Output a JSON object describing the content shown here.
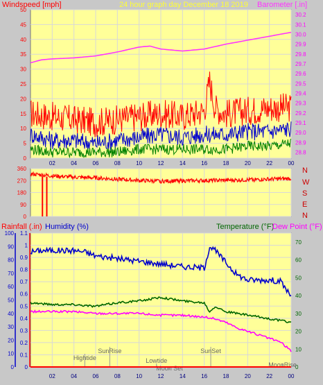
{
  "colors": {
    "background": "#c8c8c8",
    "plot_bg": "#ffff99",
    "grid": "#d8d8d8",
    "wind_gust": "#ff0000",
    "wind_avg": "#0000cc",
    "wind_min": "#008000",
    "barometer": "#ff33ff",
    "direction": "#ff0000",
    "rainfall": "#ff0000",
    "humidity": "#0000cc",
    "temperature": "#006600",
    "dewpoint": "#ff00ff"
  },
  "header": {
    "left": "Windspeed [mph]",
    "center": "24 hour graph day   December 18 2019",
    "right": "Barometer [.in]"
  },
  "lower_header": {
    "rainfall": "Rainfall (.in)",
    "humidity": "Humidity (%)",
    "temperature": "Temperature (°F)",
    "dewpoint": "Dew Point (°F)"
  },
  "compass": [
    "N",
    "W",
    "S",
    "E",
    "N"
  ],
  "x_ticks": [
    "02",
    "04",
    "06",
    "08",
    "10",
    "12",
    "14",
    "16",
    "18",
    "20",
    "22",
    "00"
  ],
  "annotations": {
    "hightide": "Hightide",
    "sunrise": "SunRise",
    "lowtide": "Lowtide",
    "moonset": "Moon Set",
    "sunset": "SunSet",
    "moonrise": "MoonRise"
  },
  "chart_data": [
    {
      "type": "line",
      "name": "wind-barometer",
      "x_ticks": [
        "02",
        "04",
        "06",
        "08",
        "10",
        "12",
        "14",
        "16",
        "18",
        "20",
        "22",
        "00"
      ],
      "y_left": {
        "label": "Windspeed [mph]",
        "ticks": [
          0,
          5,
          10,
          15,
          20,
          25,
          30,
          35,
          40,
          45,
          50
        ],
        "range": [
          0,
          50
        ]
      },
      "y_right": {
        "label": "Barometer [.in]",
        "ticks": [
          28.8,
          28.9,
          29.0,
          29.1,
          29.2,
          29.3,
          29.4,
          29.5,
          29.6,
          29.7,
          29.8,
          29.9,
          30.0,
          30.1,
          30.2
        ],
        "range": [
          28.74,
          30.25
        ]
      },
      "series": [
        {
          "key": "gust",
          "axis": "left",
          "hours": [
            0,
            2,
            4,
            6,
            8,
            10,
            12,
            14,
            16,
            16.5,
            17,
            18,
            20,
            22,
            24
          ],
          "values": [
            15,
            14,
            13,
            12,
            13,
            14,
            15,
            14,
            16,
            26,
            17,
            15,
            16,
            17,
            17
          ]
        },
        {
          "key": "avg",
          "axis": "left",
          "hours": [
            0,
            2,
            4,
            6,
            8,
            10,
            12,
            14,
            16,
            18,
            20,
            22,
            24
          ],
          "values": [
            8,
            6,
            6,
            5,
            6,
            7,
            8,
            7,
            8,
            8,
            9,
            9,
            10
          ]
        },
        {
          "key": "min",
          "axis": "left",
          "hours": [
            0,
            2,
            4,
            6,
            8,
            10,
            12,
            14,
            16,
            18,
            20,
            22,
            24
          ],
          "values": [
            3,
            2,
            2,
            2,
            2,
            3,
            3,
            3,
            3,
            3,
            4,
            4,
            5
          ]
        },
        {
          "key": "barometer",
          "axis": "right",
          "hours": [
            0,
            1,
            2,
            4,
            6,
            8,
            10,
            11,
            12,
            14,
            16,
            18,
            20,
            22,
            24
          ],
          "values": [
            29.71,
            29.74,
            29.75,
            29.76,
            29.78,
            29.82,
            29.87,
            29.88,
            29.85,
            29.83,
            29.85,
            29.9,
            29.94,
            29.98,
            30.02
          ]
        }
      ]
    },
    {
      "type": "line",
      "name": "wind-direction",
      "y_left": {
        "ticks": [
          0,
          90,
          180,
          270,
          360
        ],
        "range": [
          0,
          360
        ]
      },
      "series": [
        {
          "key": "direction",
          "hours": [
            0,
            2,
            4,
            6,
            8,
            10,
            12,
            14,
            16,
            18,
            20,
            22,
            24
          ],
          "values": [
            320,
            305,
            295,
            290,
            280,
            270,
            265,
            268,
            270,
            272,
            275,
            280,
            285
          ]
        }
      ]
    },
    {
      "type": "line",
      "name": "temp-humidity",
      "y_rain": {
        "label": "Rainfall (.in)",
        "ticks": [
          0,
          0.1,
          0.2,
          0.3,
          0.4,
          0.5,
          0.6,
          0.7,
          0.8,
          0.9,
          1,
          1.1
        ],
        "range": [
          0,
          1.1
        ]
      },
      "y_hum": {
        "label": "Humidity (%)",
        "ticks": [
          0,
          10,
          20,
          30,
          40,
          50,
          60,
          70,
          80,
          90,
          100
        ],
        "range": [
          0,
          100
        ]
      },
      "y_temp": {
        "label": "Temperature (°F)",
        "ticks": [
          0,
          10,
          20,
          30,
          40,
          50,
          60,
          70
        ],
        "range": [
          0,
          75
        ]
      },
      "series": [
        {
          "key": "humidity",
          "axis": "hum",
          "hours": [
            0,
            1,
            4,
            5,
            6,
            8,
            10,
            12,
            14,
            16,
            16.5,
            17,
            18,
            19,
            20,
            22,
            23,
            24
          ],
          "values": [
            86,
            87,
            87,
            86,
            83,
            81,
            79,
            77,
            75,
            74,
            90,
            87,
            78,
            69,
            65,
            65,
            64,
            53
          ]
        },
        {
          "key": "temperature",
          "axis": "temp",
          "hours": [
            0,
            2,
            4,
            6,
            8,
            10,
            12,
            14,
            16,
            16.5,
            17,
            18,
            20,
            22,
            24
          ],
          "values": [
            36,
            35,
            35,
            34,
            36,
            37,
            39,
            37,
            36,
            31,
            34,
            31,
            29,
            27,
            25
          ]
        },
        {
          "key": "dewpoint",
          "axis": "temp",
          "hours": [
            0,
            2,
            4,
            6,
            8,
            10,
            12,
            14,
            16,
            17,
            18,
            19,
            20,
            22,
            23,
            24
          ],
          "values": [
            31,
            31,
            31,
            30,
            30,
            30,
            29,
            29,
            28,
            27,
            25,
            22,
            20,
            16,
            14,
            9
          ]
        },
        {
          "key": "rainfall",
          "axis": "rain",
          "hours": [
            0,
            24
          ],
          "values": [
            0,
            0
          ]
        }
      ]
    }
  ]
}
